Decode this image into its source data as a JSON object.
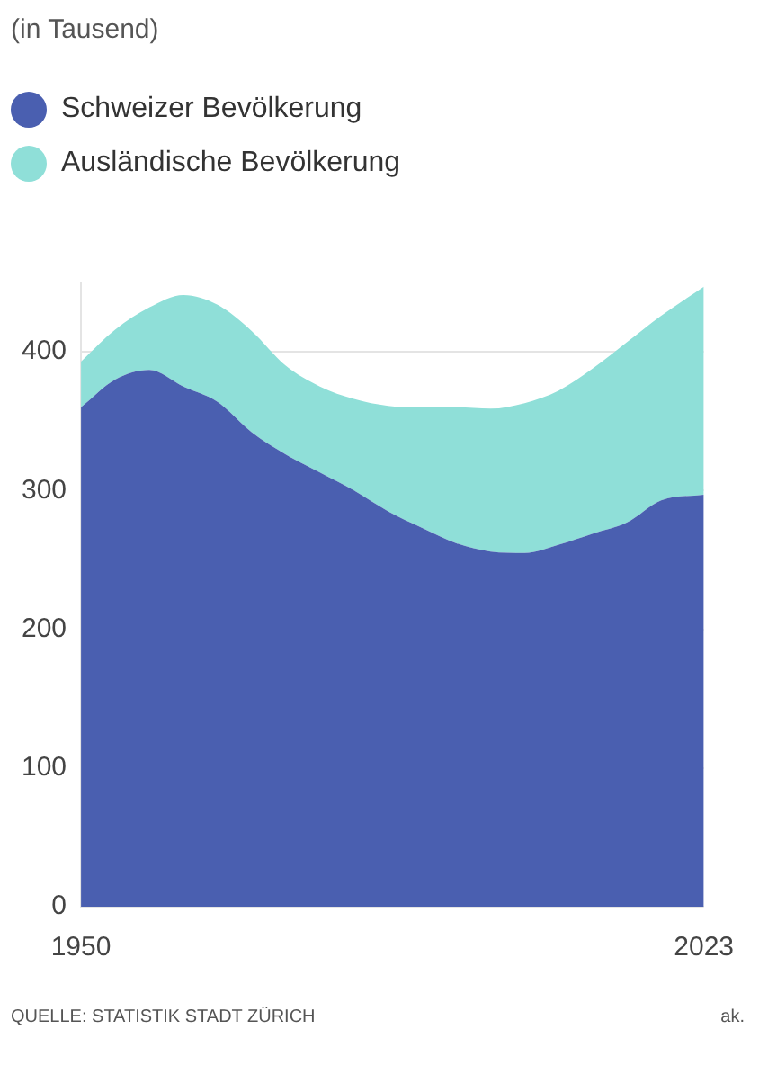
{
  "chart_data": {
    "type": "area",
    "title": "(in Tausend)",
    "stacked": true,
    "legend": "top left",
    "grid": "y",
    "marker": "none",
    "x": [
      1950,
      1954,
      1958,
      1962,
      1966,
      1970,
      1974,
      1978,
      1982,
      1986,
      1990,
      1994,
      1998,
      2002,
      2006,
      2010,
      2014,
      2018,
      2023
    ],
    "series": [
      {
        "name": "Schweizer Bevölkerung",
        "color": "#4a5fb0",
        "values": [
          360,
          380,
          387,
          375,
          364,
          342,
          326,
          313,
          300,
          285,
          273,
          262,
          256,
          255,
          261,
          269,
          277,
          293,
          297
        ]
      },
      {
        "name": "Ausländische Bevölkerung",
        "color": "#8fdfd8",
        "values": [
          33,
          36,
          45,
          66,
          70,
          73,
          64,
          62,
          66,
          76,
          87,
          98,
          103,
          108,
          111,
          119,
          130,
          133,
          150
        ]
      }
    ],
    "xlim": [
      1950,
      2023
    ],
    "xticks": [
      1950,
      2023
    ],
    "ylim": [
      0,
      450
    ],
    "yticks": [
      0,
      100,
      200,
      300,
      400
    ],
    "annotations": [
      "QUELLE: STATISTIK STADT ZÜRICH",
      "ak."
    ]
  }
}
